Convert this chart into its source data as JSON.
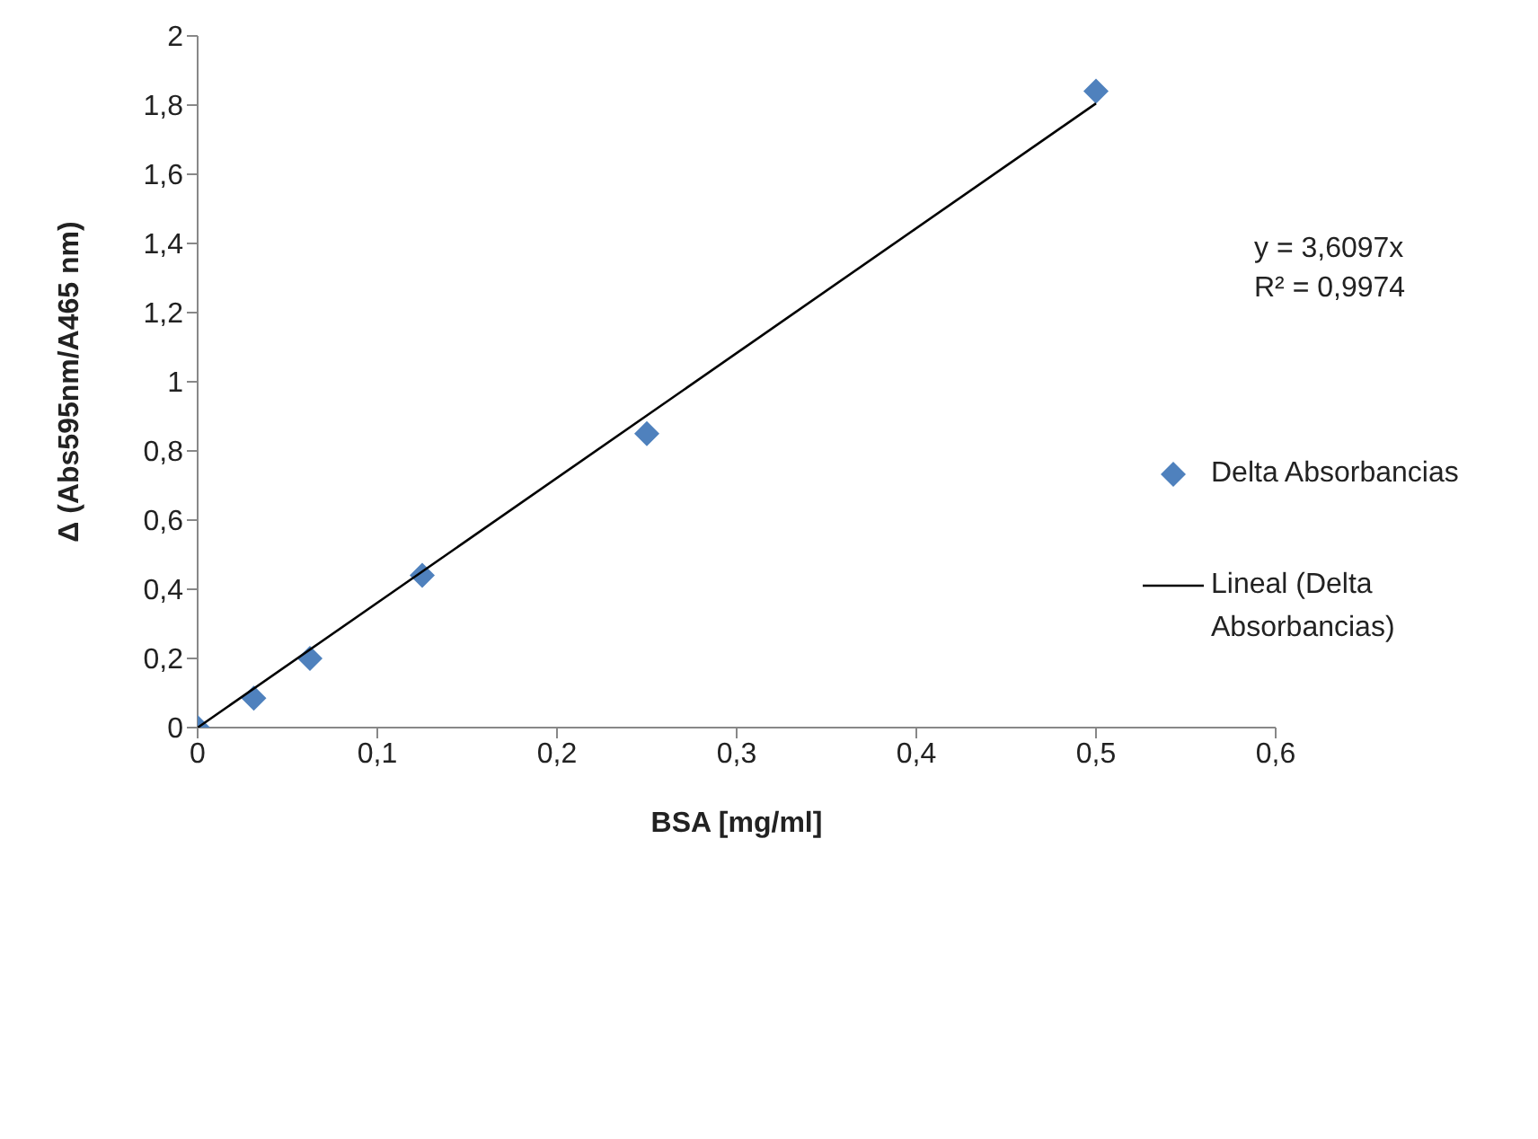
{
  "chart_data": {
    "type": "scatter",
    "xlabel": "BSA [mg/ml]",
    "ylabel": "Δ (Abs595nm/A465 nm)",
    "series": [
      {
        "name": "Delta Absorbancias",
        "color": "#4f81bd",
        "marker": "diamond",
        "x": [
          0,
          0.03125,
          0.0625,
          0.125,
          0.25,
          0.5
        ],
        "values": [
          0,
          0.085,
          0.2,
          0.44,
          0.85,
          1.84
        ]
      },
      {
        "name": "Lineal (Delta Absorbancias)",
        "type": "line",
        "color": "#000000",
        "marker": "none",
        "x": [
          0,
          0.5
        ],
        "values": [
          0,
          1.805
        ]
      }
    ],
    "xlim": [
      0,
      0.6
    ],
    "ylim": [
      0,
      2
    ],
    "xticks": [
      0,
      {
        "value": 0.1,
        "label": "0,1"
      },
      {
        "value": 0.2,
        "label": "0,2"
      },
      {
        "value": 0.3,
        "label": "0,3"
      },
      {
        "value": 0.4,
        "label": "0,4"
      },
      {
        "value": 0.5,
        "label": "0,5"
      },
      {
        "value": 0.6,
        "label": "0,6"
      }
    ],
    "yticks": [
      0,
      {
        "value": 0.2,
        "label": "0,2"
      },
      {
        "value": 0.4,
        "label": "0,4"
      },
      {
        "value": 0.6,
        "label": "0,6"
      },
      {
        "value": 0.8,
        "label": "0,8"
      },
      1,
      {
        "value": 1.2,
        "label": "1,2"
      },
      {
        "value": 1.4,
        "label": "1,4"
      },
      {
        "value": 1.6,
        "label": "1,6"
      },
      {
        "value": 1.8,
        "label": "1,8"
      },
      2
    ],
    "annotations": [
      "y = 3,6097x",
      "R² = 0,9974"
    ],
    "legend": "right",
    "grid": false
  }
}
